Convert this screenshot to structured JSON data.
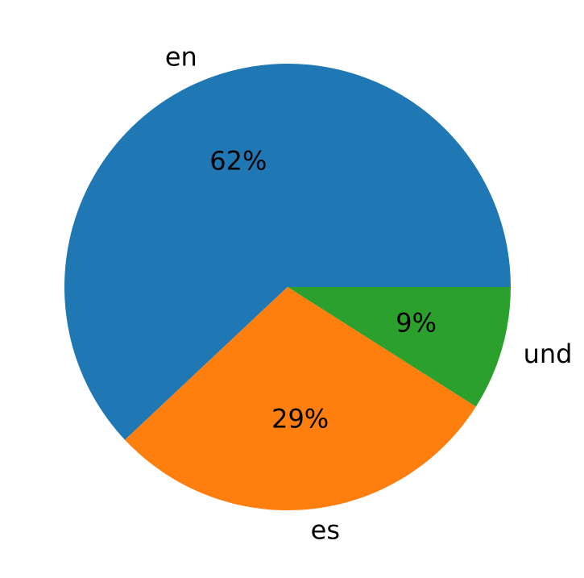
{
  "chart_data": {
    "type": "pie",
    "categories": [
      "en",
      "es",
      "und"
    ],
    "values": [
      62,
      29,
      9
    ],
    "value_labels": [
      "62%",
      "29%",
      "9%"
    ],
    "colors": [
      "#1f77b4",
      "#ff7f0e",
      "#2ca02c"
    ]
  }
}
